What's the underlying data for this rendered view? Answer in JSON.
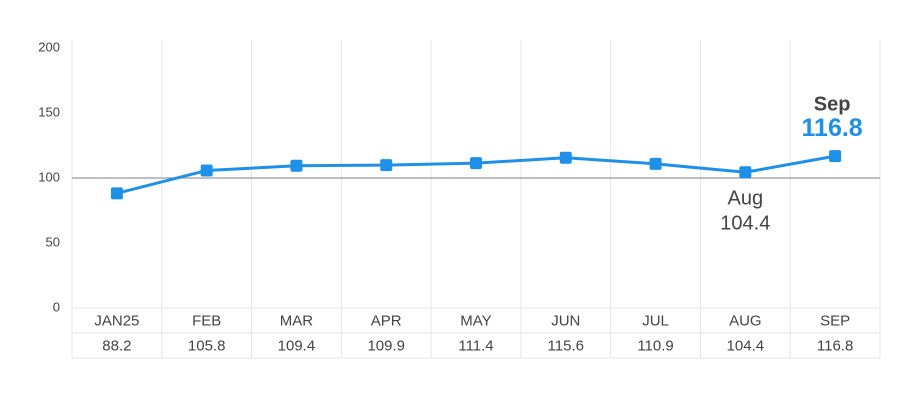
{
  "chart_data": {
    "type": "line",
    "categories": [
      "JAN25",
      "FEB",
      "MAR",
      "APR",
      "MAY",
      "JUN",
      "JUL",
      "AUG",
      "SEP"
    ],
    "series": [
      {
        "color": "#1e90e8",
        "values": [
          88.2,
          105.8,
          109.4,
          109.9,
          111.4,
          115.6,
          110.9,
          104.4,
          116.8
        ]
      }
    ],
    "ylim": [
      0,
      200
    ],
    "yticks": [
      0,
      50,
      100,
      150,
      200
    ],
    "reference_line": 100,
    "annotations": [
      {
        "label": "Aug",
        "text": "104.4",
        "style": "muted"
      },
      {
        "label": "Sep",
        "text": "116.8",
        "style": "highlight"
      }
    ]
  }
}
